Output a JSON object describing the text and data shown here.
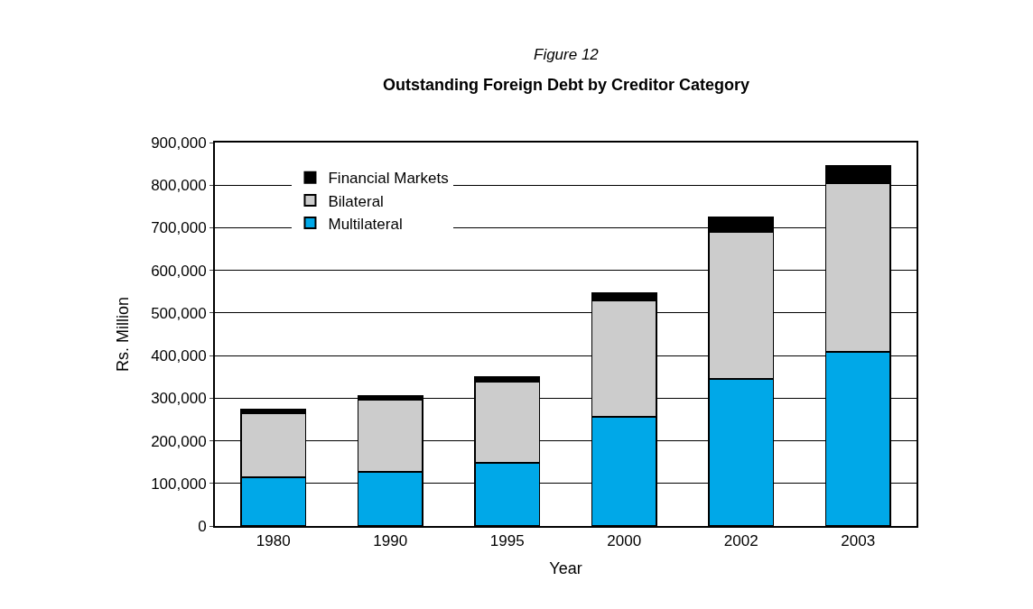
{
  "chart_data": {
    "type": "bar",
    "stacked": true,
    "subtitle": "Figure 12",
    "title": "Outstanding Foreign Debt by Creditor Category",
    "xlabel": "Year",
    "ylabel": "Rs. Million",
    "categories": [
      "1980",
      "1990",
      "1995",
      "2000",
      "2002",
      "2003"
    ],
    "series": [
      {
        "name": "Multilateral",
        "color": "#00a8e8",
        "values": [
          114000,
          127500,
          148500,
          256000,
          345000,
          408500
        ]
      },
      {
        "name": "Bilateral",
        "color": "#cccccc",
        "values": [
          149500,
          167500,
          189500,
          273000,
          345500,
          396500
        ]
      },
      {
        "name": "Financial Markets",
        "color": "#000000",
        "values": [
          11000,
          11000,
          13000,
          17000,
          34500,
          41000
        ]
      }
    ],
    "ylim": [
      0,
      900000
    ],
    "yticks": [
      {
        "value": 0,
        "label": "0"
      },
      {
        "value": 100000,
        "label": "100,000"
      },
      {
        "value": 200000,
        "label": "200,000"
      },
      {
        "value": 300000,
        "label": "300,000"
      },
      {
        "value": 400000,
        "label": "400,000"
      },
      {
        "value": 500000,
        "label": "500,000"
      },
      {
        "value": 600000,
        "label": "600,000"
      },
      {
        "value": 700000,
        "label": "700,000"
      },
      {
        "value": 800000,
        "label": "800,000"
      },
      {
        "value": 900000,
        "label": "900,000"
      }
    ],
    "grid": "y",
    "legend": "top left"
  }
}
